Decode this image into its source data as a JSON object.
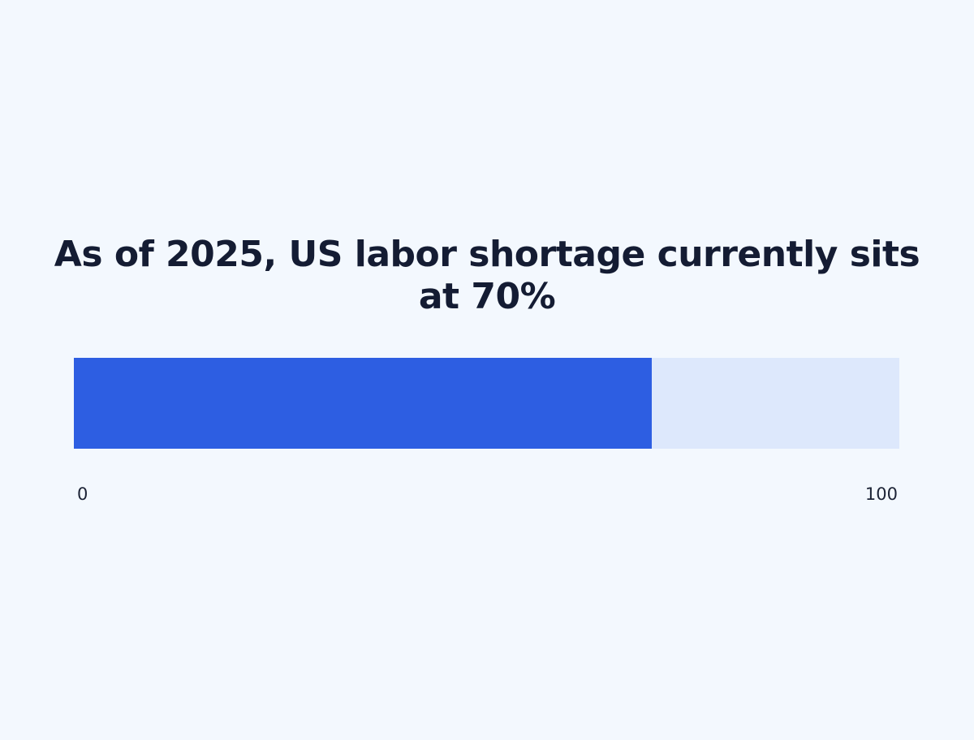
{
  "chart_data": {
    "type": "bar",
    "title": "As of 2025, US labor shortage currently sits at 70%",
    "value": 70,
    "min": 0,
    "max": 100,
    "tick_labels": [
      "0",
      "100"
    ],
    "fill_color": "#2d5ee2",
    "track_color": "#dde8fc"
  },
  "page": {
    "background": "#f3f8fe"
  }
}
